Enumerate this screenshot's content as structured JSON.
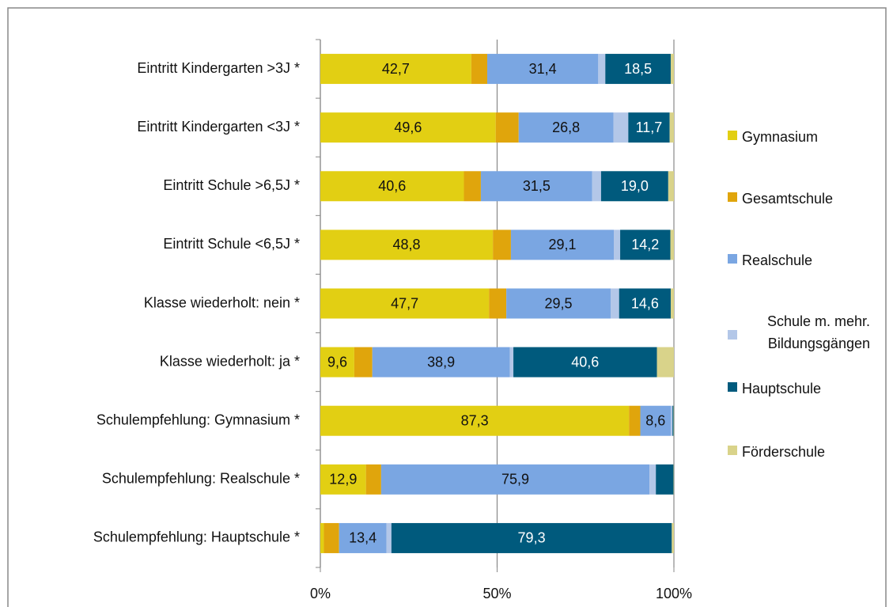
{
  "chart_data": {
    "type": "stacked_barh",
    "categories": [
      "Eintritt Kindergarten >3J *",
      "Eintritt Kindergarten <3J *",
      "Eintritt Schule >6,5J *",
      "Eintritt Schule <6,5J *",
      "Klasse wiederholt: nein *",
      "Klasse wiederholt: ja *",
      "Schulempfehlung: Gymnasium *",
      "Schulempfehlung: Realschule *",
      "Schulempfehlung: Hauptschule *"
    ],
    "series": [
      {
        "name": "Gymnasium",
        "color": "#e2cf13",
        "values": [
          42.7,
          49.6,
          40.6,
          48.8,
          47.7,
          9.6,
          87.3,
          12.9,
          1.0
        ],
        "value_labels": [
          "42,7",
          "49,6",
          "40,6",
          "48,8",
          "47,7",
          "9,6",
          "87,3",
          "12,9",
          null
        ]
      },
      {
        "name": "Gesamtschule",
        "color": "#e0a50c",
        "values": [
          4.5,
          6.5,
          4.8,
          5.1,
          4.9,
          5.1,
          3.2,
          4.3,
          4.3
        ],
        "value_labels": [
          null,
          null,
          null,
          null,
          null,
          null,
          null,
          null,
          null
        ]
      },
      {
        "name": "Realschule",
        "color": "#7aa6e2",
        "values": [
          31.4,
          26.8,
          31.5,
          29.1,
          29.5,
          38.9,
          8.6,
          75.9,
          13.4
        ],
        "value_labels": [
          "31,4",
          "26,8",
          "31,5",
          "29,1",
          "29,5",
          "38,9",
          "8,6",
          "75,9",
          "13,4"
        ]
      },
      {
        "name": "Schule m. mehr. Bildungsgängen",
        "color": "#b3c7e8",
        "values": [
          2.0,
          4.2,
          2.5,
          1.8,
          2.4,
          1.0,
          0.5,
          1.8,
          1.4
        ],
        "value_labels": [
          null,
          null,
          null,
          null,
          null,
          null,
          null,
          null,
          null
        ]
      },
      {
        "name": "Hauptschule",
        "color": "#005a7d",
        "values": [
          18.5,
          11.7,
          19.0,
          14.2,
          14.6,
          40.6,
          0.3,
          5.0,
          79.3
        ],
        "value_labels": [
          "18,5",
          "11,7",
          "19,0",
          "14,2",
          "14,6",
          "40,6",
          null,
          null,
          "79,3"
        ]
      },
      {
        "name": "Förderschule",
        "color": "#d9d38a",
        "values": [
          0.9,
          1.2,
          1.6,
          1.0,
          0.9,
          4.8,
          0.1,
          0.1,
          0.6
        ],
        "value_labels": [
          null,
          null,
          null,
          null,
          null,
          null,
          null,
          null,
          null
        ]
      }
    ],
    "xlim": [
      0,
      100
    ],
    "xticks": [
      {
        "value": 0,
        "label": "0%"
      },
      {
        "value": 50,
        "label": "50%"
      },
      {
        "value": 100,
        "label": "100%"
      }
    ],
    "grid": true,
    "legend": "right"
  }
}
